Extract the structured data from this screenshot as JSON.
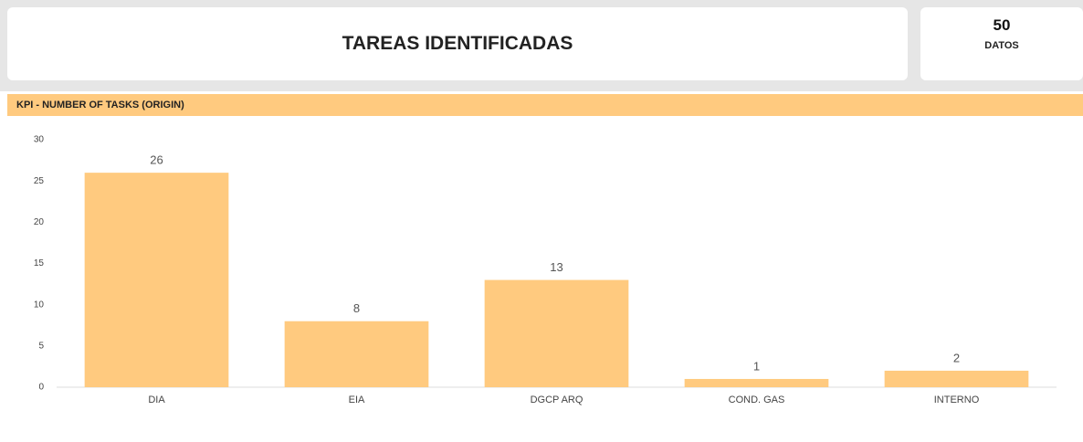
{
  "header": {
    "title": "TAREAS IDENTIFICADAS"
  },
  "kpi": {
    "value": 50,
    "label": "DATOS"
  },
  "chart_data": {
    "type": "bar",
    "title": "KPI - NUMBER OF TASKS (ORIGIN)",
    "categories": [
      "DIA",
      "EIA",
      "DGCP ARQ",
      "COND. GAS",
      "INTERNO"
    ],
    "values": [
      26,
      8,
      13,
      1,
      2
    ],
    "color": "#ffca7f",
    "ylim": [
      0,
      30
    ],
    "yticks": [
      0,
      5,
      10,
      15,
      20,
      25,
      30
    ],
    "grid": false
  }
}
